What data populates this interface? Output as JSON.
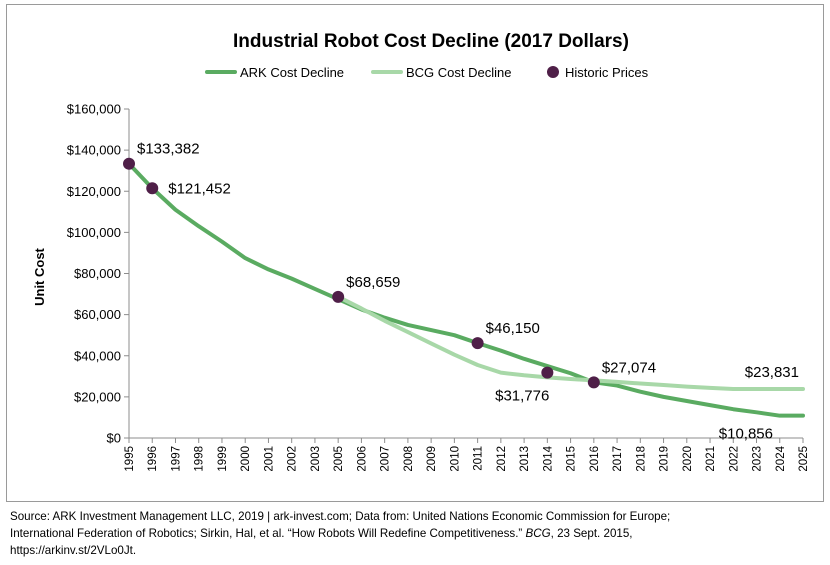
{
  "chart_data": {
    "type": "line",
    "title": "Industrial Robot Cost Decline (2017 Dollars)",
    "ylabel": "Unit Cost",
    "xlabel": "",
    "ylim": [
      0,
      160000
    ],
    "y_ticks": [
      0,
      20000,
      40000,
      60000,
      80000,
      100000,
      120000,
      140000,
      160000
    ],
    "y_tick_labels": [
      "$0",
      "$20,000",
      "$40,000",
      "$60,000",
      "$80,000",
      "$100,000",
      "$120,000",
      "$140,000",
      "$160,000"
    ],
    "x": [
      1995,
      1996,
      1997,
      1998,
      1999,
      2000,
      2001,
      2002,
      2003,
      2005,
      2006,
      2007,
      2008,
      2009,
      2010,
      2011,
      2012,
      2013,
      2014,
      2015,
      2016,
      2017,
      2018,
      2019,
      2020,
      2021,
      2022,
      2023,
      2024,
      2025
    ],
    "grid": false,
    "legend_position": "top",
    "series": [
      {
        "name": "ARK Cost Decline",
        "style": "line",
        "color": "#5aab61",
        "points": [
          [
            1995,
            133382
          ],
          [
            1996,
            121452
          ],
          [
            1997,
            111000
          ],
          [
            1998,
            103000
          ],
          [
            1999,
            95500
          ],
          [
            2000,
            87500
          ],
          [
            2001,
            82000
          ],
          [
            2002,
            77500
          ],
          [
            2003,
            72500
          ],
          [
            2005,
            67500
          ],
          [
            2006,
            62500
          ],
          [
            2007,
            58500
          ],
          [
            2008,
            55000
          ],
          [
            2009,
            52500
          ],
          [
            2010,
            50000
          ],
          [
            2011,
            46150
          ],
          [
            2012,
            42500
          ],
          [
            2013,
            38500
          ],
          [
            2014,
            35000
          ],
          [
            2015,
            31500
          ],
          [
            2016,
            27074
          ],
          [
            2017,
            25500
          ],
          [
            2018,
            22500
          ],
          [
            2019,
            20000
          ],
          [
            2020,
            18000
          ],
          [
            2021,
            16000
          ],
          [
            2022,
            14000
          ],
          [
            2023,
            12500
          ],
          [
            2024,
            10856
          ],
          [
            2025,
            10856
          ]
        ]
      },
      {
        "name": "BCG Cost Decline",
        "style": "line",
        "color": "#a8d8a8",
        "points": [
          [
            2005,
            68659
          ],
          [
            2006,
            63000
          ],
          [
            2007,
            57000
          ],
          [
            2008,
            51500
          ],
          [
            2009,
            46000
          ],
          [
            2010,
            40500
          ],
          [
            2011,
            35500
          ],
          [
            2012,
            31776
          ],
          [
            2013,
            30500
          ],
          [
            2014,
            29500
          ],
          [
            2015,
            28700
          ],
          [
            2016,
            28000
          ],
          [
            2017,
            27300
          ],
          [
            2018,
            26500
          ],
          [
            2019,
            25800
          ],
          [
            2020,
            25000
          ],
          [
            2021,
            24400
          ],
          [
            2022,
            23831
          ],
          [
            2023,
            23831
          ],
          [
            2024,
            23831
          ],
          [
            2025,
            23831
          ]
        ]
      },
      {
        "name": "Historic Prices",
        "style": "markers",
        "color": "#4f1f48",
        "points": [
          [
            1995,
            133382
          ],
          [
            1996,
            121452
          ],
          [
            2005,
            68659
          ],
          [
            2011,
            46150
          ],
          [
            2014,
            31776
          ],
          [
            2016,
            27074
          ]
        ]
      }
    ],
    "annotations": [
      {
        "text": "$133,382",
        "x": 1995,
        "y": 133382,
        "anchor": "above-right"
      },
      {
        "text": "$121,452",
        "x": 1996,
        "y": 121452,
        "anchor": "right"
      },
      {
        "text": "$68,659",
        "x": 2005,
        "y": 68659,
        "anchor": "above-right"
      },
      {
        "text": "$46,150",
        "x": 2011,
        "y": 46150,
        "anchor": "above-right"
      },
      {
        "text": "$31,776",
        "x": 2014,
        "y": 31776,
        "anchor": "below-left"
      },
      {
        "text": "$27,074",
        "x": 2016,
        "y": 27074,
        "anchor": "above-right"
      },
      {
        "text": "$23,831",
        "x": 2025,
        "y": 23831,
        "anchor": "above-left"
      },
      {
        "text": "$10,856",
        "x": 2025,
        "y": 10856,
        "anchor": "below-left"
      }
    ]
  },
  "source_note": {
    "line1": "Source: ARK Investment Management LLC, 2019 | ark-invest.com;  Data from: United Nations Economic Commission for Europe;",
    "line2_pre": "International Federation of Robotics; Sirkin, Hal, et al. “How Robots Will Redefine Competitiveness.” ",
    "line2_em": "BCG",
    "line2_post": ", 23 Sept. 2015,",
    "line3": "https://arkinv.st/2VLo0Jt."
  }
}
